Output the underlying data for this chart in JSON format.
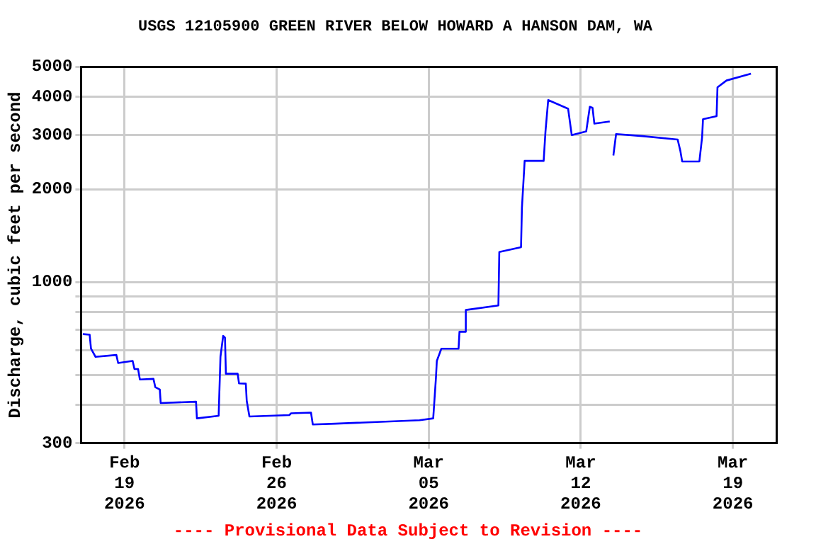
{
  "chart_data": {
    "type": "line",
    "title": "USGS 12105900 GREEN RIVER BELOW HOWARD A HANSON DAM, WA",
    "ylabel": "Discharge, cubic feet per second",
    "annotations": [
      "---- Provisional Data Subject to Revision ----"
    ],
    "log": "y",
    "grid": true,
    "legend": false,
    "marker": "none",
    "line_style": "solid",
    "xlim": [
      "2026-02-17",
      "2026-03-21"
    ],
    "xticks": [
      {
        "value": "2026-02-19",
        "label": "Feb 19 2026"
      },
      {
        "value": "2026-02-26",
        "label": "Feb 26 2026"
      },
      {
        "value": "2026-03-05",
        "label": "Mar 05 2026"
      },
      {
        "value": "2026-03-12",
        "label": "Mar 12 2026"
      },
      {
        "value": "2026-03-19",
        "label": "Mar 19 2026"
      }
    ],
    "ylim": [
      300,
      5000
    ],
    "yticks": [
      300,
      {
        "value": 400,
        "label": null
      },
      {
        "value": 500,
        "label": null
      },
      {
        "value": 600,
        "label": null
      },
      {
        "value": 700,
        "label": null
      },
      {
        "value": 800,
        "label": null
      },
      {
        "value": 900,
        "label": null
      },
      1000,
      2000,
      3000,
      4000,
      5000
    ],
    "x": [
      "2026-02-17T02:00",
      "2026-02-17T09:30",
      "2026-02-17T11:00",
      "2026-02-17T16:00",
      "2026-02-18T15:00",
      "2026-02-18T17:00",
      "2026-02-19T09:00",
      "2026-02-19T11:00",
      "2026-02-19T15:00",
      "2026-02-19T17:00",
      "2026-02-20T08:00",
      "2026-02-20T10:00",
      "2026-02-20T15:00",
      "2026-02-20T16:00",
      "2026-02-22T07:00",
      "2026-02-22T08:00",
      "2026-02-23T08:00",
      "2026-02-23T10:00",
      "2026-02-23T13:00",
      "2026-02-23T15:00",
      "2026-02-23T16:00",
      "2026-02-24T05:00",
      "2026-02-24T06:30",
      "2026-02-24T14:00",
      "2026-02-24T15:00",
      "2026-02-24T18:00",
      "2026-02-26T14:00",
      "2026-02-26T16:00",
      "2026-02-27T14:00",
      "2026-02-27T16:00",
      "2026-02-28T17:00",
      "2026-03-04T14:00",
      "2026-03-05T05:00",
      "2026-03-05T08:00",
      "2026-03-05T09:00",
      "2026-03-05T14:00",
      "2026-03-06T09:00",
      "2026-03-06T10:00",
      "2026-03-06T16:00",
      "2026-03-06T17:00",
      "2026-03-08T05:00",
      "2026-03-08T06:00",
      "2026-03-09T06:00",
      "2026-03-09T07:00",
      "2026-03-09T10:00",
      "2026-03-10T07:00",
      "2026-03-10T09:00",
      "2026-03-10T12:00",
      "2026-03-11T10:00",
      "2026-03-11T14:00",
      "2026-03-12T06:00",
      "2026-03-12T10:00",
      "2026-03-12T13:00",
      "2026-03-12T15:00",
      "2026-03-13T08:00",
      "2026-03-13T10:00",
      "2026-03-13T12:00",
      "2026-03-13T15:00",
      "2026-03-14T20:00",
      "2026-03-16T11:00",
      "2026-03-16T14:00",
      "2026-03-16T16:00",
      "2026-03-17T11:00",
      "2026-03-17T14:00",
      "2026-03-17T15:00",
      "2026-03-18T06:00",
      "2026-03-18T07:00",
      "2026-03-18T17:00",
      "2026-03-19T20:00"
    ],
    "series": [
      {
        "color": "#0000ff",
        "values": [
          678,
          675,
          608,
          572,
          580,
          546,
          555,
          522,
          522,
          483,
          485,
          456,
          448,
          405,
          409,
          361,
          368,
          572,
          669,
          660,
          504,
          504,
          469,
          468,
          412,
          366,
          370,
          375,
          377,
          345,
          347,
          356,
          361,
          488,
          555,
          608,
          608,
          690,
          690,
          812,
          840,
          1253,
          1298,
          1744,
          2475,
          2475,
          3085,
          3900,
          3656,
          3003,
          3085,
          3710,
          3680,
          3270,
          3325,
          null,
          2578,
          3025,
          2980,
          2904,
          2666,
          2465,
          2465,
          2951,
          3382,
          3460,
          4292,
          4516,
          4750
        ]
      }
    ]
  }
}
